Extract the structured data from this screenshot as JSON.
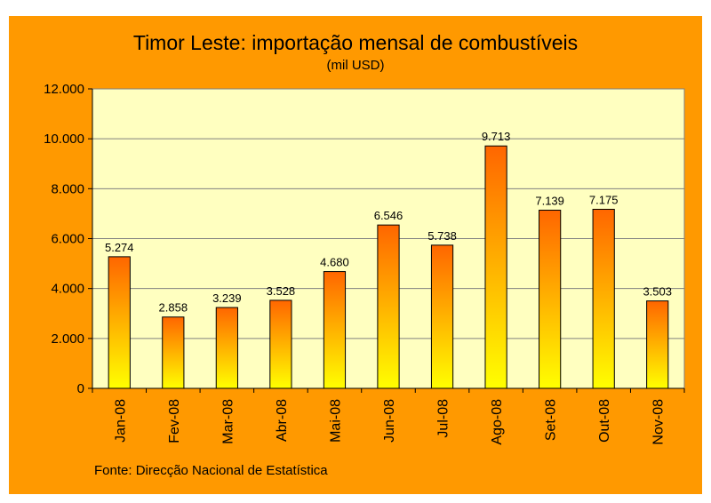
{
  "chart_data": {
    "type": "bar",
    "title": "Timor Leste: importação mensal de combustíveis",
    "subtitle": "(mil USD)",
    "categories": [
      "Jan-08",
      "Fev-08",
      "Mar-08",
      "Abr-08",
      "Mai-08",
      "Jun-08",
      "Jul-08",
      "Ago-08",
      "Set-08",
      "Out-08",
      "Nov-08"
    ],
    "values": [
      5274,
      2858,
      3239,
      3528,
      4680,
      6546,
      5738,
      9713,
      7139,
      7175,
      3503
    ],
    "value_labels": [
      "5.274",
      "2.858",
      "3.239",
      "3.528",
      "4.680",
      "6.546",
      "5.738",
      "9.713",
      "7.139",
      "7.175",
      "3.503"
    ],
    "ylim": [
      0,
      12000
    ],
    "yticks": [
      0,
      2000,
      4000,
      6000,
      8000,
      10000,
      12000
    ],
    "ytick_labels": [
      "0",
      "2.000",
      "4.000",
      "6.000",
      "8.000",
      "10.000",
      "12.000"
    ],
    "grid": true,
    "source": "Fonte: Direcção Nacional de Estatística",
    "colors": {
      "background": "#ff9900",
      "plot_area": "#ffffc0",
      "bar_top": "#ff6600",
      "bar_bottom": "#ffff00",
      "gridline": "#808080"
    }
  }
}
